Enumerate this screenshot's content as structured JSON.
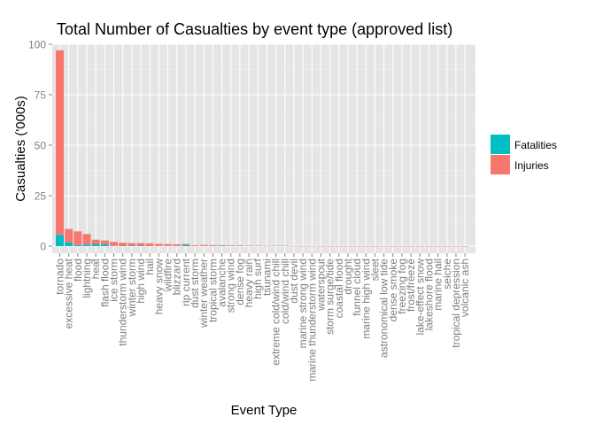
{
  "chart_data": {
    "type": "bar",
    "stacked": true,
    "title": "Total Number of Casualties by event type (approved list)",
    "xlabel": "Event Type",
    "ylabel": "Casualties ('000s)",
    "ylim": [
      0,
      100
    ],
    "yticks": [
      0,
      25,
      50,
      75,
      100
    ],
    "grid": true,
    "legend_position": "right",
    "categories": [
      "tornado",
      "excessive heat",
      "flood",
      "lightning",
      "heat",
      "flash flood",
      "ice storm",
      "thunderstorm wind",
      "winter storm",
      "high wind",
      "hail",
      "heavy snow",
      "wildfire",
      "blizzard",
      "rip current",
      "dust storm",
      "winter weather",
      "tropical storm",
      "avalanche",
      "strong wind",
      "dense fog",
      "heavy rain",
      "high surf",
      "tsunami",
      "extreme cold/wind chill",
      "cold/wind chill",
      "dust devil",
      "marine strong wind",
      "marine thunderstorm wind",
      "waterspout",
      "storm surge/tide",
      "coastal flood",
      "drought",
      "funnel cloud",
      "marine high wind",
      "sleet",
      "astronomical low tide",
      "dense smoke",
      "freezing fog",
      "frost/freeze",
      "lake-effect snow",
      "lakeshore flood",
      "marine hail",
      "seiche",
      "tropical depression",
      "volcanic ash"
    ],
    "series": [
      {
        "name": "Fatalities",
        "color": "#00BFC4",
        "values": [
          5.6,
          1.9,
          0.5,
          0.8,
          1.1,
          1.0,
          0.1,
          0.2,
          0.2,
          0.3,
          0.0,
          0.1,
          0.1,
          0.1,
          0.6,
          0.0,
          0.1,
          0.1,
          0.2,
          0.1,
          0.1,
          0.1,
          0.1,
          0.0,
          0.1,
          0.1,
          0.0,
          0.0,
          0.0,
          0.0,
          0.0,
          0.0,
          0.0,
          0.0,
          0.0,
          0.0,
          0.0,
          0.0,
          0.0,
          0.0,
          0.0,
          0.0,
          0.0,
          0.0,
          0.0,
          0.0
        ]
      },
      {
        "name": "Injuries",
        "color": "#F8766D",
        "values": [
          91.4,
          6.6,
          6.8,
          5.2,
          2.1,
          1.8,
          2.0,
          1.5,
          1.3,
          1.2,
          1.4,
          1.0,
          0.9,
          0.8,
          0.5,
          0.4,
          0.5,
          0.4,
          0.2,
          0.3,
          0.3,
          0.2,
          0.1,
          0.1,
          0.1,
          0.1,
          0.05,
          0.03,
          0.03,
          0.03,
          0.02,
          0.02,
          0.02,
          0.02,
          0.02,
          0.01,
          0.01,
          0.01,
          0.01,
          0.01,
          0.01,
          0.01,
          0.01,
          0.01,
          0.01,
          0.01
        ]
      }
    ]
  }
}
